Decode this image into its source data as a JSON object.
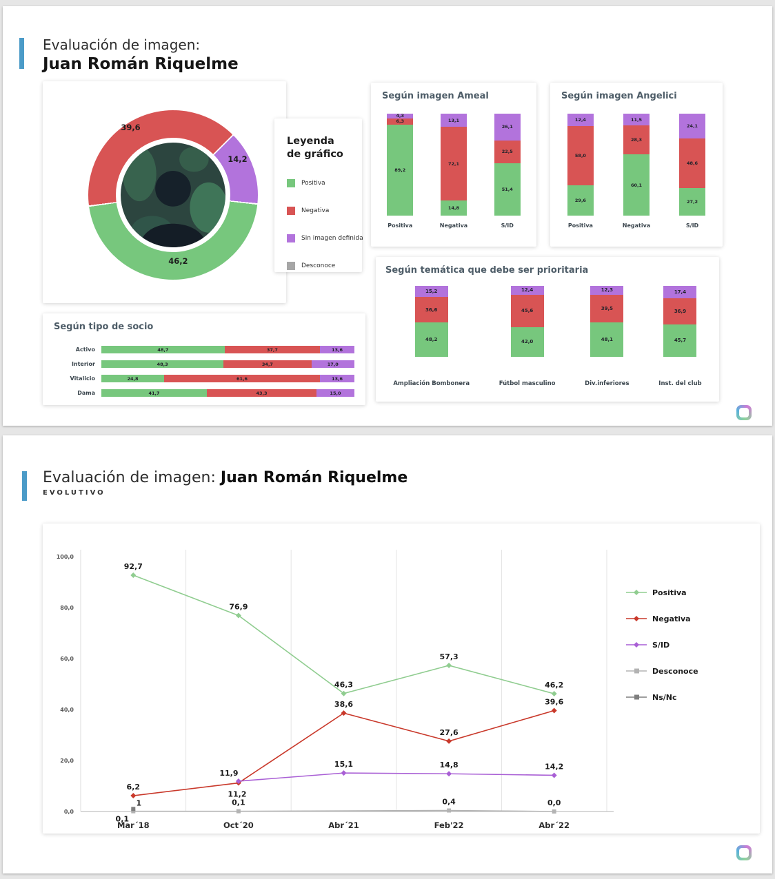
{
  "colors": {
    "positiva": "#77c77d",
    "negativa": "#d85454",
    "sid": "#b273dc",
    "desconoce": "#a6a6a6",
    "accent": "#4b9bc8"
  },
  "slide1": {
    "title_line1": "Evaluación de imagen:",
    "title_line2": "Juan Román Riquelme",
    "legend_card": {
      "title_line1": "Leyenda",
      "title_line2": "de gráfico",
      "items": [
        {
          "label": "Positiva",
          "color": "#77c77d"
        },
        {
          "label": "Negativa",
          "color": "#d85454"
        },
        {
          "label": "Sin imagen definida",
          "color": "#b273dc"
        },
        {
          "label": "Desconoce",
          "color": "#a6a6a6"
        }
      ]
    }
  },
  "slide2": {
    "title_prefix": "Evaluación de imagen: ",
    "title_bold": "Juan Román Riquelme",
    "subtitle": "EVOLUTIVO"
  },
  "chart_data": [
    {
      "id": "donut",
      "type": "pie",
      "labels": [
        "Positiva",
        "Negativa",
        "Sin imagen definida"
      ],
      "values": [
        46.2,
        39.6,
        14.2
      ],
      "display_labels": [
        "46,2",
        "39,6",
        "14,2"
      ],
      "colors": [
        "#77c77d",
        "#d85454",
        "#b273dc"
      ]
    },
    {
      "id": "ameal",
      "type": "bar",
      "stacked": true,
      "title": "Según imagen Ameal",
      "categories": [
        "Positiva",
        "Negativa",
        "S/ID"
      ],
      "ylim": [
        0,
        100
      ],
      "series": [
        {
          "name": "Positiva",
          "color": "#77c77d",
          "values": [
            89.2,
            14.8,
            51.4
          ],
          "labels": [
            "89,2",
            "14,8",
            "51,4"
          ]
        },
        {
          "name": "Negativa",
          "color": "#d85454",
          "values": [
            6.3,
            72.1,
            22.5
          ],
          "labels": [
            "6,3",
            "72,1",
            "22,5"
          ]
        },
        {
          "name": "Sin imagen definida",
          "color": "#b273dc",
          "values": [
            4.3,
            13.1,
            26.1
          ],
          "labels": [
            "4,3",
            "13,1",
            "26,1"
          ]
        }
      ]
    },
    {
      "id": "angelici",
      "type": "bar",
      "stacked": true,
      "title": "Según imagen Angelici",
      "categories": [
        "Positiva",
        "Negativa",
        "S/ID"
      ],
      "ylim": [
        0,
        100
      ],
      "series": [
        {
          "name": "Positiva",
          "color": "#77c77d",
          "values": [
            29.6,
            60.1,
            27.2
          ],
          "labels": [
            "29,6",
            "60,1",
            "27,2"
          ]
        },
        {
          "name": "Negativa",
          "color": "#d85454",
          "values": [
            58.0,
            28.3,
            48.6
          ],
          "labels": [
            "58,0",
            "28,3",
            "48,6"
          ]
        },
        {
          "name": "Sin imagen definida",
          "color": "#b273dc",
          "values": [
            12.4,
            11.5,
            24.1
          ],
          "labels": [
            "12,4",
            "11,5",
            "24,1"
          ]
        }
      ]
    },
    {
      "id": "socio",
      "type": "bar",
      "stacked": true,
      "orientation": "horizontal",
      "title": "Según tipo de socio",
      "categories": [
        "Activo",
        "Interior",
        "Vitalicio",
        "Dama"
      ],
      "xlim": [
        0,
        100
      ],
      "series": [
        {
          "name": "Positiva",
          "color": "#77c77d",
          "values": [
            48.7,
            48.3,
            24.8,
            41.7
          ],
          "labels": [
            "48,7",
            "48,3",
            "24,8",
            "41,7"
          ]
        },
        {
          "name": "Negativa",
          "color": "#d85454",
          "values": [
            37.7,
            34.7,
            61.6,
            43.3
          ],
          "labels": [
            "37,7",
            "34,7",
            "61,6",
            "43,3"
          ]
        },
        {
          "name": "Sin imagen definida",
          "color": "#b273dc",
          "values": [
            13.6,
            17.0,
            13.6,
            15.0
          ],
          "labels": [
            "13,6",
            "17,0",
            "13,6",
            "15,0"
          ]
        }
      ]
    },
    {
      "id": "tematica",
      "type": "bar",
      "stacked": true,
      "title": "Según temática que debe ser prioritaria",
      "categories": [
        "Ampliación Bombonera",
        "Fútbol masculino",
        "Div.inferiores",
        "Inst. del club"
      ],
      "ylim": [
        0,
        100
      ],
      "series": [
        {
          "name": "Positiva",
          "color": "#77c77d",
          "values": [
            48.2,
            42.0,
            48.1,
            45.7
          ],
          "labels": [
            "48,2",
            "42,0",
            "48,1",
            "45,7"
          ]
        },
        {
          "name": "Negativa",
          "color": "#d85454",
          "values": [
            36.6,
            45.6,
            39.5,
            36.9
          ],
          "labels": [
            "36,6",
            "45,6",
            "39,5",
            "36,9"
          ]
        },
        {
          "name": "Sin imagen definida",
          "color": "#b273dc",
          "values": [
            15.2,
            12.4,
            12.3,
            17.4
          ],
          "labels": [
            "15,2",
            "12,4",
            "12,3",
            "17,4"
          ]
        }
      ]
    },
    {
      "id": "evolutivo",
      "type": "line",
      "title": "",
      "x": [
        "Mar´18",
        "Oct´20",
        "Abr´21",
        "Feb'22",
        "Abr´22"
      ],
      "ylim": [
        0,
        100
      ],
      "yticks": [
        0,
        20,
        40,
        60,
        80,
        100
      ],
      "ytick_labels": [
        "0,0",
        "20,0",
        "40,0",
        "60,0",
        "80,0",
        "100,0"
      ],
      "legend_position": "right",
      "series": [
        {
          "name": "Positiva",
          "color": "#90cd90",
          "marker": "diamond",
          "values": [
            92.7,
            76.9,
            46.3,
            57.3,
            46.2
          ],
          "labels": [
            "92,7",
            "76,9",
            "46,3",
            "57,3",
            "46,2"
          ]
        },
        {
          "name": "Negativa",
          "color": "#c9392b",
          "marker": "diamond",
          "values": [
            6.2,
            11.2,
            38.6,
            27.6,
            39.6
          ],
          "labels": [
            "6,2",
            "11,2",
            "38,6",
            "27,6",
            "39,6"
          ]
        },
        {
          "name": "S/ID",
          "color": "#a95fd5",
          "marker": "diamond",
          "values": [
            null,
            11.9,
            15.1,
            14.8,
            14.2
          ],
          "labels": [
            null,
            "11,9",
            "15,1",
            "14,8",
            "14,2"
          ]
        },
        {
          "name": "Desconoce",
          "color": "#b3b3b3",
          "marker": "square",
          "values": [
            0.1,
            0.1,
            null,
            0.4,
            0.0
          ],
          "labels": [
            "0,1",
            "0,1",
            null,
            "0,4",
            "0,0"
          ]
        },
        {
          "name": "Ns/Nc",
          "color": "#7f7f7f",
          "marker": "square",
          "values": [
            1.0,
            null,
            null,
            null,
            null
          ],
          "labels": [
            "1",
            null,
            null,
            null,
            null
          ]
        }
      ]
    }
  ]
}
